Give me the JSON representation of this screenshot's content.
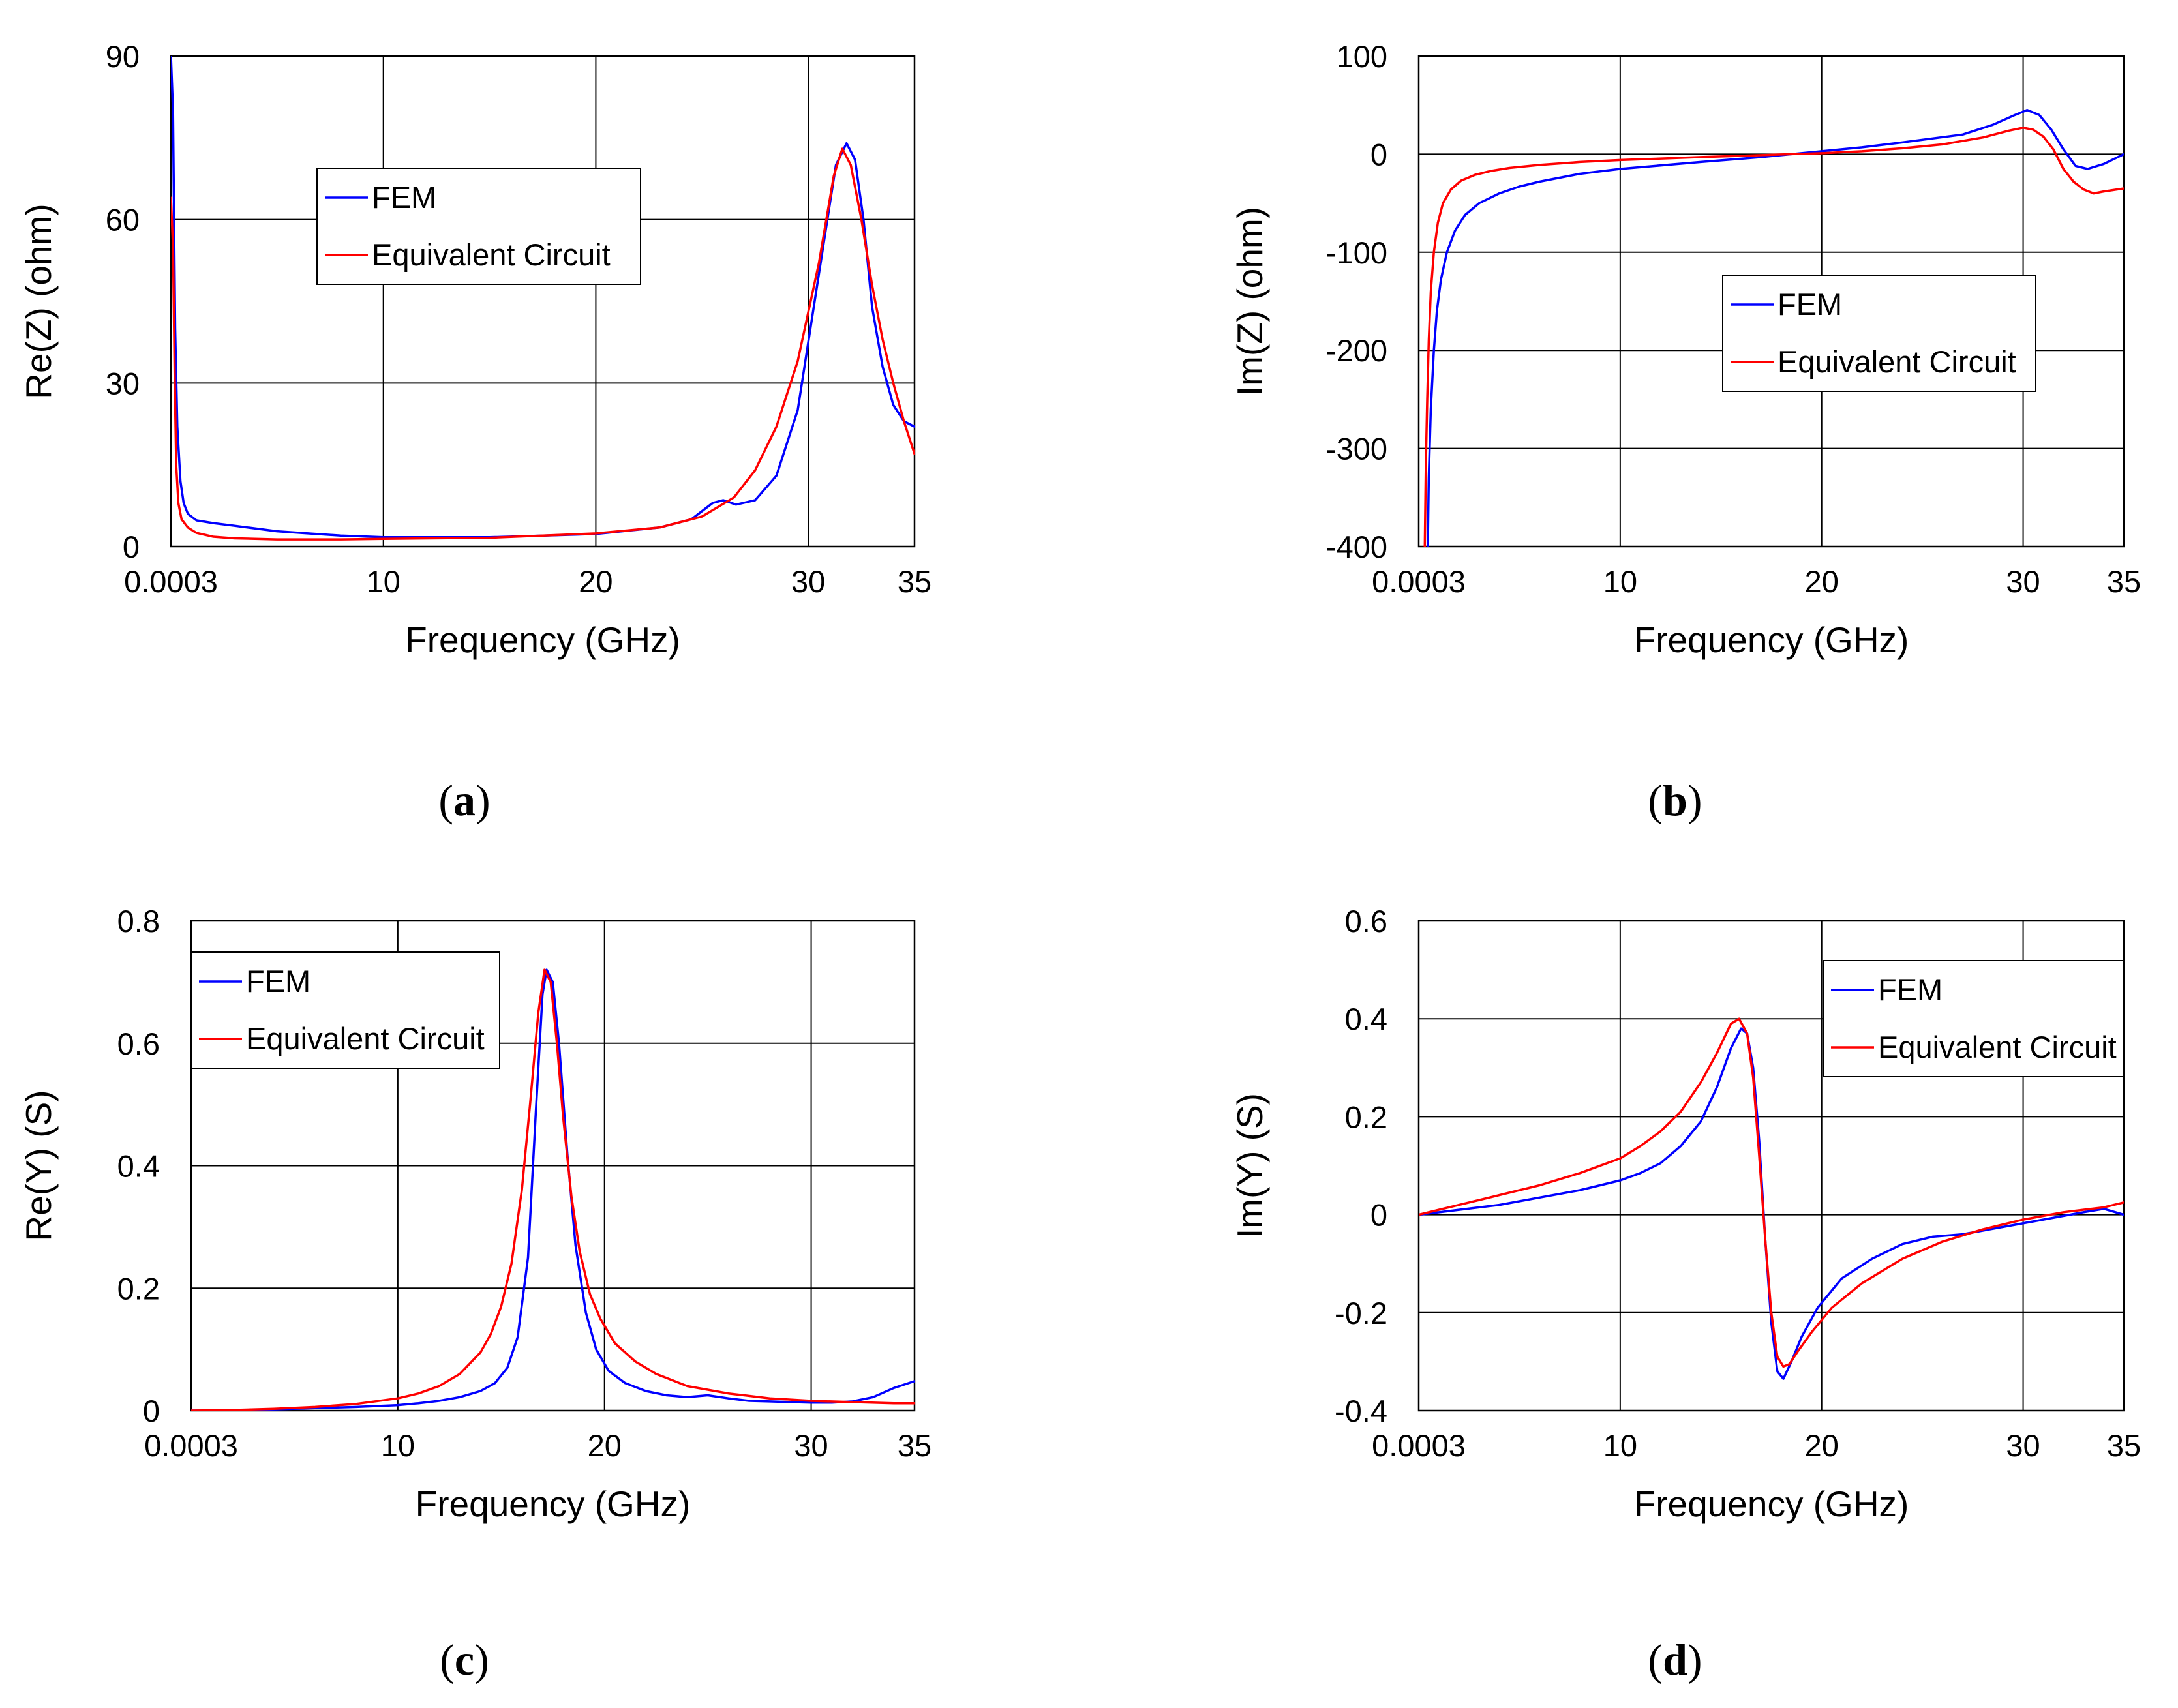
{
  "chart_data": [
    {
      "id": "a",
      "type": "line",
      "panel_label": "a",
      "xlabel": "Frequency (GHz)",
      "ylabel": "Re(Z) (ohm)",
      "xlim": [
        0.0003,
        35
      ],
      "ylim": [
        0,
        90
      ],
      "xticks": [
        0.0003,
        10,
        20,
        30,
        35
      ],
      "xtick_labels": [
        "0.0003",
        "10",
        "20",
        "30",
        "35"
      ],
      "yticks": [
        0,
        30,
        60,
        90
      ],
      "ytick_labels": [
        "0",
        "30",
        "60",
        "90"
      ],
      "grid": true,
      "legend_position": "upper-center",
      "series": [
        {
          "name": "FEM",
          "color": "#0000ff",
          "x": [
            0.0003,
            0.1,
            0.2,
            0.3,
            0.45,
            0.6,
            0.8,
            1.2,
            2,
            3,
            5,
            8,
            10,
            15,
            20,
            23,
            24.5,
            25.5,
            26,
            26.6,
            27.5,
            28.5,
            29.5,
            30.5,
            31.3,
            31.8,
            32.2,
            32.6,
            33,
            33.5,
            34,
            34.5,
            35
          ],
          "y": [
            90,
            80,
            40,
            22,
            12,
            8,
            6,
            4.8,
            4.3,
            3.8,
            2.8,
            2,
            1.7,
            1.7,
            2.3,
            3.5,
            5,
            8,
            8.5,
            7.7,
            8.5,
            13,
            25,
            50,
            70,
            74,
            71,
            60,
            44,
            33,
            26,
            23,
            22
          ]
        },
        {
          "name": "Equivalent Circuit",
          "color": "#ff0000",
          "x": [
            0.0003,
            0.1,
            0.18,
            0.25,
            0.35,
            0.5,
            0.8,
            1.2,
            2,
            3,
            5,
            8,
            10,
            15,
            20,
            23,
            25,
            26.5,
            27.5,
            28.5,
            29.5,
            30.5,
            31.2,
            31.6,
            32,
            32.5,
            33,
            33.5,
            34,
            34.5,
            35
          ],
          "y": [
            64,
            55,
            30,
            15,
            8,
            5,
            3.5,
            2.5,
            1.8,
            1.5,
            1.3,
            1.3,
            1.4,
            1.6,
            2.4,
            3.5,
            5.5,
            9,
            14,
            22,
            34,
            52,
            68,
            73,
            70,
            60,
            48,
            38,
            30,
            23,
            17
          ]
        }
      ]
    },
    {
      "id": "b",
      "type": "line",
      "panel_label": "b",
      "xlabel": "Frequency (GHz)",
      "ylabel": "Im(Z) (ohm)",
      "xlim": [
        0.0003,
        35
      ],
      "ylim": [
        -400,
        100
      ],
      "xticks": [
        0.0003,
        10,
        20,
        30,
        35
      ],
      "xtick_labels": [
        "0.0003",
        "10",
        "20",
        "30",
        "35"
      ],
      "yticks": [
        -400,
        -300,
        -200,
        -100,
        0,
        100
      ],
      "ytick_labels": [
        "-400",
        "-300",
        "-200",
        "-100",
        "0",
        "100"
      ],
      "grid": true,
      "legend_position": "center-right",
      "series": [
        {
          "name": "FEM",
          "color": "#0000ff",
          "x": [
            0.45,
            0.5,
            0.6,
            0.75,
            0.9,
            1.1,
            1.4,
            1.8,
            2.3,
            3,
            4,
            5,
            6,
            8,
            10,
            14,
            17,
            20,
            22,
            24,
            25.5,
            27,
            28.5,
            29.6,
            30.2,
            30.8,
            31.4,
            32,
            32.6,
            33.2,
            34,
            35
          ],
          "y": [
            -400,
            -330,
            -260,
            -200,
            -160,
            -128,
            -100,
            -78,
            -62,
            -50,
            -40,
            -33,
            -28,
            -20,
            -15,
            -8,
            -3,
            3,
            7,
            12,
            16,
            20,
            30,
            40,
            45,
            40,
            25,
            5,
            -12,
            -15,
            -10,
            0
          ]
        },
        {
          "name": "Equivalent Circuit",
          "color": "#ff0000",
          "x": [
            0.3,
            0.35,
            0.42,
            0.5,
            0.6,
            0.75,
            0.95,
            1.2,
            1.6,
            2.1,
            2.8,
            3.6,
            4.5,
            6,
            8,
            10,
            14,
            17,
            20,
            22,
            24,
            26,
            28,
            29.3,
            30,
            30.5,
            31,
            31.5,
            32,
            32.5,
            33,
            33.5,
            34,
            35
          ],
          "y": [
            -400,
            -320,
            -250,
            -190,
            -140,
            -100,
            -70,
            -50,
            -36,
            -27,
            -21,
            -17,
            -14,
            -11,
            -8,
            -6,
            -3,
            -1,
            1,
            3,
            6,
            10,
            17,
            24,
            27,
            25,
            18,
            5,
            -15,
            -28,
            -36,
            -40,
            -38,
            -35
          ]
        }
      ]
    },
    {
      "id": "c",
      "type": "line",
      "panel_label": "c",
      "xlabel": "Frequency (GHz)",
      "ylabel": "Re(Y) (S)",
      "xlim": [
        0.0003,
        35
      ],
      "ylim": [
        0,
        0.8
      ],
      "xticks": [
        0.0003,
        10,
        20,
        30,
        35
      ],
      "xtick_labels": [
        "0.0003",
        "10",
        "20",
        "30",
        "35"
      ],
      "yticks": [
        0,
        0.2,
        0.4,
        0.6,
        0.8
      ],
      "ytick_labels": [
        "0",
        "0.2",
        "0.4",
        "0.6",
        "0.8"
      ],
      "grid": true,
      "legend_position": "upper-left",
      "series": [
        {
          "name": "FEM",
          "color": "#0000ff",
          "x": [
            0.0003,
            2,
            4,
            6,
            8,
            10,
            11,
            12,
            13,
            14,
            14.7,
            15.3,
            15.8,
            16.3,
            16.7,
            17,
            17.2,
            17.5,
            17.8,
            18.2,
            18.6,
            19.1,
            19.6,
            20.2,
            21,
            22,
            23,
            24,
            25,
            26,
            27,
            28,
            29,
            30,
            31,
            32,
            33,
            34,
            35
          ],
          "y": [
            0,
            0,
            0.002,
            0.004,
            0.006,
            0.009,
            0.012,
            0.016,
            0.022,
            0.032,
            0.045,
            0.07,
            0.12,
            0.25,
            0.5,
            0.68,
            0.72,
            0.7,
            0.6,
            0.42,
            0.27,
            0.16,
            0.1,
            0.065,
            0.045,
            0.032,
            0.025,
            0.022,
            0.025,
            0.02,
            0.016,
            0.015,
            0.014,
            0.013,
            0.013,
            0.015,
            0.022,
            0.037,
            0.048
          ]
        },
        {
          "name": "Equivalent Circuit",
          "color": "#ff0000",
          "x": [
            0.0003,
            2,
            4,
            6,
            8,
            10,
            11,
            12,
            13,
            14,
            14.5,
            15,
            15.5,
            16,
            16.4,
            16.8,
            17.1,
            17.4,
            17.7,
            18,
            18.4,
            18.8,
            19.3,
            19.8,
            20.5,
            21.5,
            22.5,
            24,
            26,
            28,
            30,
            32,
            34,
            35
          ],
          "y": [
            0,
            0.001,
            0.003,
            0.006,
            0.011,
            0.02,
            0.028,
            0.04,
            0.06,
            0.095,
            0.125,
            0.17,
            0.24,
            0.36,
            0.5,
            0.65,
            0.72,
            0.7,
            0.6,
            0.48,
            0.35,
            0.26,
            0.19,
            0.15,
            0.11,
            0.08,
            0.06,
            0.04,
            0.028,
            0.02,
            0.016,
            0.014,
            0.012,
            0.012
          ]
        }
      ]
    },
    {
      "id": "d",
      "type": "line",
      "panel_label": "d",
      "xlabel": "Frequency (GHz)",
      "ylabel": "Im(Y) (S)",
      "xlim": [
        0.0003,
        35
      ],
      "ylim": [
        -0.4,
        0.6
      ],
      "xticks": [
        0.0003,
        10,
        20,
        30,
        35
      ],
      "xtick_labels": [
        "0.0003",
        "10",
        "20",
        "30",
        "35"
      ],
      "yticks": [
        -0.4,
        -0.2,
        0,
        0.2,
        0.4,
        0.6
      ],
      "ytick_labels": [
        "-0.4",
        "-0.2",
        "0",
        "0.2",
        "0.4",
        "0.6"
      ],
      "grid": true,
      "legend_position": "upper-right",
      "series": [
        {
          "name": "FEM",
          "color": "#0000ff",
          "x": [
            0.0003,
            2,
            4,
            6,
            8,
            10,
            11,
            12,
            13,
            14,
            14.8,
            15.5,
            16,
            16.3,
            16.6,
            16.9,
            17.2,
            17.5,
            17.8,
            18.1,
            18.5,
            19,
            19.8,
            21,
            22.5,
            24,
            25.5,
            27,
            29,
            31,
            33,
            34,
            35
          ],
          "y": [
            0,
            0.01,
            0.02,
            0.035,
            0.05,
            0.07,
            0.085,
            0.105,
            0.14,
            0.19,
            0.26,
            0.34,
            0.38,
            0.37,
            0.3,
            0.15,
            -0.05,
            -0.22,
            -0.32,
            -0.335,
            -0.3,
            -0.25,
            -0.19,
            -0.13,
            -0.09,
            -0.06,
            -0.045,
            -0.04,
            -0.025,
            -0.01,
            0.005,
            0.012,
            0
          ]
        },
        {
          "name": "Equivalent Circuit",
          "color": "#ff0000",
          "x": [
            0.0003,
            2,
            4,
            6,
            8,
            10,
            11,
            12,
            13,
            14,
            14.8,
            15.5,
            15.9,
            16.3,
            16.6,
            16.9,
            17.2,
            17.5,
            17.8,
            18.1,
            18.4,
            18.8,
            19.5,
            20.5,
            22,
            24,
            26,
            28,
            30,
            32,
            34,
            35
          ],
          "y": [
            0,
            0.02,
            0.04,
            0.06,
            0.085,
            0.115,
            0.14,
            0.17,
            0.21,
            0.27,
            0.33,
            0.39,
            0.4,
            0.37,
            0.28,
            0.12,
            -0.05,
            -0.2,
            -0.29,
            -0.31,
            -0.305,
            -0.28,
            -0.24,
            -0.19,
            -0.14,
            -0.09,
            -0.055,
            -0.03,
            -0.01,
            0.005,
            0.015,
            0.025
          ]
        }
      ]
    }
  ]
}
